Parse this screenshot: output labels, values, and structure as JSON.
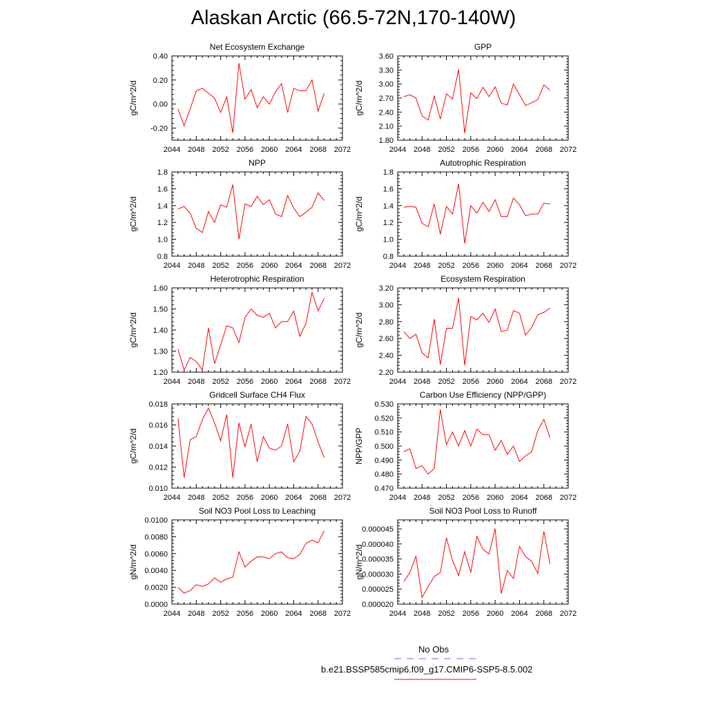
{
  "title": "Alaskan Arctic (66.5-72N,170-140W)",
  "legend": {
    "entries": [
      {
        "label": "No Obs",
        "color": "#6666ff",
        "style": "dashed"
      },
      {
        "label": "b.e21.BSSP585cmip6.f09_g17.CMIP6-SSP5-8.5.002",
        "color": "#ff0000",
        "style": "solid"
      }
    ]
  },
  "chart_data": [
    {
      "type": "line",
      "title": "Net Ecosystem Exchange",
      "ylabel": "gC/m^2/d",
      "xlim": [
        2044,
        2072
      ],
      "ylim": [
        -0.3,
        0.4
      ],
      "xticks": [
        "2044",
        "2048",
        "2052",
        "2056",
        "2060",
        "2064",
        "2068",
        "2072"
      ],
      "yticks": [
        "0.40",
        "0.20",
        "0.00",
        "-0.20"
      ],
      "ytick_values": [
        0.4,
        0.2,
        0.0,
        -0.2
      ],
      "x": [
        2045,
        2046,
        2047,
        2048,
        2049,
        2050,
        2051,
        2052,
        2053,
        2054,
        2055,
        2056,
        2057,
        2058,
        2059,
        2060,
        2061,
        2062,
        2063,
        2064,
        2065,
        2066,
        2067,
        2068,
        2069
      ],
      "series": [
        {
          "color": "#ff0000",
          "values": [
            -0.04,
            -0.18,
            -0.04,
            0.11,
            0.13,
            0.09,
            0.05,
            -0.07,
            0.06,
            -0.24,
            0.34,
            0.04,
            0.12,
            -0.03,
            0.06,
            0.0,
            0.1,
            0.17,
            -0.07,
            0.13,
            0.11,
            0.11,
            0.2,
            -0.06,
            0.09
          ]
        }
      ]
    },
    {
      "type": "line",
      "title": "GPP",
      "ylabel": "gC/m^2/d",
      "xlim": [
        2044,
        2072
      ],
      "ylim": [
        1.8,
        3.6
      ],
      "xticks": [
        "2044",
        "2048",
        "2052",
        "2056",
        "2060",
        "2064",
        "2068",
        "2072"
      ],
      "yticks": [
        "3.60",
        "3.30",
        "3.00",
        "2.70",
        "2.40",
        "2.10",
        "1.80"
      ],
      "ytick_values": [
        3.6,
        3.3,
        3.0,
        2.7,
        2.4,
        2.1,
        1.8
      ],
      "x": [
        2045,
        2046,
        2047,
        2048,
        2049,
        2050,
        2051,
        2052,
        2053,
        2054,
        2055,
        2056,
        2057,
        2058,
        2059,
        2060,
        2061,
        2062,
        2063,
        2064,
        2065,
        2066,
        2067,
        2068,
        2069
      ],
      "series": [
        {
          "color": "#ff0000",
          "values": [
            2.73,
            2.77,
            2.7,
            2.32,
            2.23,
            2.74,
            2.25,
            2.79,
            2.68,
            3.31,
            1.95,
            2.81,
            2.69,
            2.93,
            2.73,
            2.94,
            2.59,
            2.55,
            3.0,
            2.77,
            2.54,
            2.6,
            2.67,
            2.98,
            2.87
          ]
        }
      ]
    },
    {
      "type": "line",
      "title": "NPP",
      "ylabel": "gC/m^2/d",
      "xlim": [
        2044,
        2072
      ],
      "ylim": [
        0.8,
        1.8
      ],
      "xticks": [
        "2044",
        "2048",
        "2052",
        "2056",
        "2060",
        "2064",
        "2068",
        "2072"
      ],
      "yticks": [
        "1.8",
        "1.6",
        "1.4",
        "1.2",
        "1.0",
        "0.8"
      ],
      "ytick_values": [
        1.8,
        1.6,
        1.4,
        1.2,
        1.0,
        0.8
      ],
      "x": [
        2045,
        2046,
        2047,
        2048,
        2049,
        2050,
        2051,
        2052,
        2053,
        2054,
        2055,
        2056,
        2057,
        2058,
        2059,
        2060,
        2061,
        2062,
        2063,
        2064,
        2065,
        2066,
        2067,
        2068,
        2069
      ],
      "series": [
        {
          "color": "#ff0000",
          "values": [
            1.36,
            1.39,
            1.31,
            1.13,
            1.08,
            1.33,
            1.2,
            1.41,
            1.38,
            1.65,
            1.0,
            1.42,
            1.39,
            1.51,
            1.41,
            1.47,
            1.3,
            1.27,
            1.52,
            1.37,
            1.27,
            1.32,
            1.38,
            1.55,
            1.46
          ]
        }
      ]
    },
    {
      "type": "line",
      "title": "Autotrophic Respiration",
      "ylabel": "gC/m^2/d",
      "xlim": [
        2044,
        2072
      ],
      "ylim": [
        0.8,
        1.8
      ],
      "xticks": [
        "2044",
        "2048",
        "2052",
        "2056",
        "2060",
        "2064",
        "2068",
        "2072"
      ],
      "yticks": [
        "1.8",
        "1.6",
        "1.4",
        "1.2",
        "1.0",
        "0.8"
      ],
      "ytick_values": [
        1.8,
        1.6,
        1.4,
        1.2,
        1.0,
        0.8
      ],
      "x": [
        2045,
        2046,
        2047,
        2048,
        2049,
        2050,
        2051,
        2052,
        2053,
        2054,
        2055,
        2056,
        2057,
        2058,
        2059,
        2060,
        2061,
        2062,
        2063,
        2064,
        2065,
        2066,
        2067,
        2068,
        2069
      ],
      "series": [
        {
          "color": "#ff0000",
          "values": [
            1.38,
            1.39,
            1.38,
            1.19,
            1.15,
            1.42,
            1.06,
            1.39,
            1.3,
            1.66,
            0.95,
            1.4,
            1.31,
            1.44,
            1.33,
            1.47,
            1.27,
            1.27,
            1.49,
            1.41,
            1.28,
            1.3,
            1.3,
            1.43,
            1.42
          ]
        }
      ]
    },
    {
      "type": "line",
      "title": "Heterotrophic Respiration",
      "ylabel": "gC/m^2/d",
      "xlim": [
        2044,
        2072
      ],
      "ylim": [
        1.2,
        1.6
      ],
      "xticks": [
        "2044",
        "2048",
        "2052",
        "2056",
        "2060",
        "2064",
        "2068",
        "2072"
      ],
      "yticks": [
        "1.60",
        "1.50",
        "1.40",
        "1.30",
        "1.20"
      ],
      "ytick_values": [
        1.6,
        1.5,
        1.4,
        1.3,
        1.2
      ],
      "x": [
        2045,
        2046,
        2047,
        2048,
        2049,
        2050,
        2051,
        2052,
        2053,
        2054,
        2055,
        2056,
        2057,
        2058,
        2059,
        2060,
        2061,
        2062,
        2063,
        2064,
        2065,
        2066,
        2067,
        2068,
        2069
      ],
      "series": [
        {
          "color": "#ff0000",
          "values": [
            1.31,
            1.21,
            1.27,
            1.25,
            1.21,
            1.41,
            1.24,
            1.33,
            1.42,
            1.41,
            1.34,
            1.46,
            1.5,
            1.47,
            1.46,
            1.48,
            1.41,
            1.44,
            1.44,
            1.49,
            1.37,
            1.43,
            1.58,
            1.49,
            1.55
          ]
        }
      ]
    },
    {
      "type": "line",
      "title": "Ecosystem Respiration",
      "ylabel": "gC/m^2/d",
      "xlim": [
        2044,
        2072
      ],
      "ylim": [
        2.2,
        3.2
      ],
      "xticks": [
        "2044",
        "2048",
        "2052",
        "2056",
        "2060",
        "2064",
        "2068",
        "2072"
      ],
      "yticks": [
        "3.20",
        "3.00",
        "2.80",
        "2.60",
        "2.40",
        "2.20"
      ],
      "ytick_values": [
        3.2,
        3.0,
        2.8,
        2.6,
        2.4,
        2.2
      ],
      "x": [
        2045,
        2046,
        2047,
        2048,
        2049,
        2050,
        2051,
        2052,
        2053,
        2054,
        2055,
        2056,
        2057,
        2058,
        2059,
        2060,
        2061,
        2062,
        2063,
        2064,
        2065,
        2066,
        2067,
        2068,
        2069
      ],
      "series": [
        {
          "color": "#ff0000",
          "values": [
            2.68,
            2.6,
            2.65,
            2.43,
            2.37,
            2.83,
            2.29,
            2.72,
            2.72,
            3.08,
            2.28,
            2.86,
            2.82,
            2.9,
            2.79,
            2.95,
            2.68,
            2.7,
            2.93,
            2.9,
            2.64,
            2.73,
            2.88,
            2.91,
            2.96
          ]
        }
      ]
    },
    {
      "type": "line",
      "title": "Gridcell Surface CH4 Flux",
      "ylabel": "gC/m^2/d",
      "xlim": [
        2044,
        2072
      ],
      "ylim": [
        0.01,
        0.018
      ],
      "xticks": [
        "2044",
        "2048",
        "2052",
        "2056",
        "2060",
        "2064",
        "2068",
        "2072"
      ],
      "yticks": [
        "0.018",
        "0.016",
        "0.014",
        "0.012",
        "0.010"
      ],
      "ytick_values": [
        0.018,
        0.016,
        0.014,
        0.012,
        0.01
      ],
      "x": [
        2045,
        2046,
        2047,
        2048,
        2049,
        2050,
        2051,
        2052,
        2053,
        2054,
        2055,
        2056,
        2057,
        2058,
        2059,
        2060,
        2061,
        2062,
        2063,
        2064,
        2065,
        2066,
        2067,
        2068,
        2069
      ],
      "series": [
        {
          "color": "#ff0000",
          "values": [
            0.0166,
            0.011,
            0.0146,
            0.0149,
            0.0165,
            0.0176,
            0.0162,
            0.0145,
            0.017,
            0.011,
            0.0162,
            0.0139,
            0.0161,
            0.0125,
            0.0149,
            0.0138,
            0.0136,
            0.014,
            0.0161,
            0.0125,
            0.0135,
            0.0168,
            0.0161,
            0.0144,
            0.0129
          ]
        }
      ]
    },
    {
      "type": "line",
      "title": "Carbon Use Efficiency (NPP/GPP)",
      "ylabel": "NPP/GPP",
      "xlim": [
        2044,
        2072
      ],
      "ylim": [
        0.47,
        0.53
      ],
      "xticks": [
        "2044",
        "2048",
        "2052",
        "2056",
        "2060",
        "2064",
        "2068",
        "2072"
      ],
      "yticks": [
        "0.530",
        "0.520",
        "0.510",
        "0.500",
        "0.490",
        "0.480",
        "0.470"
      ],
      "ytick_values": [
        0.53,
        0.52,
        0.51,
        0.5,
        0.49,
        0.48,
        0.47
      ],
      "x": [
        2045,
        2046,
        2047,
        2048,
        2049,
        2050,
        2051,
        2052,
        2053,
        2054,
        2055,
        2056,
        2057,
        2058,
        2059,
        2060,
        2061,
        2062,
        2063,
        2064,
        2065,
        2066,
        2067,
        2068,
        2069
      ],
      "series": [
        {
          "color": "#ff0000",
          "values": [
            0.496,
            0.498,
            0.484,
            0.486,
            0.48,
            0.484,
            0.526,
            0.501,
            0.51,
            0.5,
            0.511,
            0.5,
            0.512,
            0.508,
            0.508,
            0.497,
            0.504,
            0.494,
            0.5,
            0.489,
            0.493,
            0.496,
            0.511,
            0.519,
            0.506
          ]
        }
      ]
    },
    {
      "type": "line",
      "title": "Soil NO3 Pool Loss to Leaching",
      "ylabel": "gN/m^2/d",
      "xlim": [
        2044,
        2072
      ],
      "ylim": [
        0.0,
        0.01
      ],
      "xticks": [
        "2044",
        "2048",
        "2052",
        "2056",
        "2060",
        "2064",
        "2068",
        "2072"
      ],
      "yticks": [
        "0.0100",
        "0.0080",
        "0.0060",
        "0.0040",
        "0.0020",
        "0.0000"
      ],
      "ytick_values": [
        0.01,
        0.008,
        0.006,
        0.004,
        0.002,
        0.0
      ],
      "x": [
        2045,
        2046,
        2047,
        2048,
        2049,
        2050,
        2051,
        2052,
        2053,
        2054,
        2055,
        2056,
        2057,
        2058,
        2059,
        2060,
        2061,
        2062,
        2063,
        2064,
        2065,
        2066,
        2067,
        2068,
        2069
      ],
      "series": [
        {
          "color": "#ff0000",
          "values": [
            0.002,
            0.0013,
            0.0016,
            0.0023,
            0.0021,
            0.0024,
            0.0031,
            0.0026,
            0.003,
            0.0032,
            0.0062,
            0.0044,
            0.0051,
            0.0056,
            0.0056,
            0.0054,
            0.006,
            0.0062,
            0.0055,
            0.0054,
            0.0059,
            0.0072,
            0.0076,
            0.0073,
            0.0087
          ]
        }
      ]
    },
    {
      "type": "line",
      "title": "Soil NO3 Pool Loss to Runoff",
      "ylabel": "gN/m^2/d",
      "xlim": [
        2044,
        2072
      ],
      "ylim": [
        2e-05,
        4.8e-05
      ],
      "xticks": [
        "2044",
        "2048",
        "2052",
        "2056",
        "2060",
        "2064",
        "2068",
        "2072"
      ],
      "yticks": [
        "0.000045",
        "0.000040",
        "0.000035",
        "0.000030",
        "0.000025",
        "0.000020"
      ],
      "ytick_values": [
        4.5e-05,
        4e-05,
        3.5e-05,
        3e-05,
        2.5e-05,
        2e-05
      ],
      "x": [
        2045,
        2046,
        2047,
        2048,
        2049,
        2050,
        2051,
        2052,
        2053,
        2054,
        2055,
        2056,
        2057,
        2058,
        2059,
        2060,
        2061,
        2062,
        2063,
        2064,
        2065,
        2066,
        2067,
        2068,
        2069
      ],
      "series": [
        {
          "color": "#ff0000",
          "values": [
            2.75e-05,
            3.05e-05,
            3.6e-05,
            2.22e-05,
            2.58e-05,
            2.92e-05,
            3.05e-05,
            4.21e-05,
            3.45e-05,
            2.95e-05,
            3.74e-05,
            3.05e-05,
            4.25e-05,
            3.82e-05,
            3.67e-05,
            4.51e-05,
            2.35e-05,
            3.12e-05,
            2.85e-05,
            3.92e-05,
            3.58e-05,
            3.42e-05,
            3.02e-05,
            4.42e-05,
            3.34e-05
          ]
        }
      ]
    }
  ]
}
